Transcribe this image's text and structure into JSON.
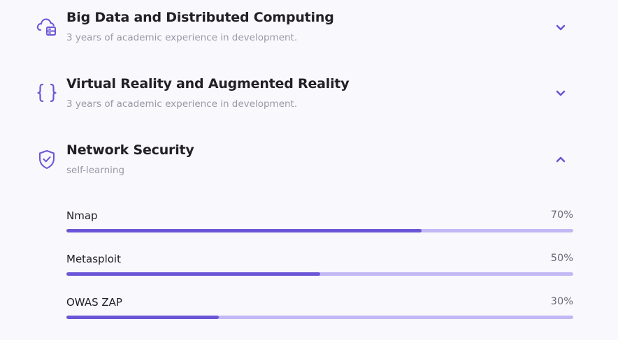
{
  "colors": {
    "accent": "#6a56d6",
    "bar_track": "#c2b8f4",
    "background": "#f9f8fc"
  },
  "qualifications": [
    {
      "icon": "cloud-server-icon",
      "title": "Big Data and Distributed Computing",
      "subtitle": "3 years of academic experience in development.",
      "expanded": false
    },
    {
      "icon": "curly-braces-icon",
      "title": "Virtual Reality and Augmented Reality",
      "subtitle": "3 years of academic experience in development.",
      "expanded": false
    },
    {
      "icon": "shield-check-icon",
      "title": "Network Security",
      "subtitle": "self-learning",
      "expanded": true,
      "skills": [
        {
          "name": "Nmap",
          "percent_label": "70%",
          "level": 0.7
        },
        {
          "name": "Metasploit",
          "percent_label": "50%",
          "level": 0.5
        },
        {
          "name": "OWAS ZAP",
          "percent_label": "30%",
          "level": 0.3
        }
      ]
    }
  ]
}
